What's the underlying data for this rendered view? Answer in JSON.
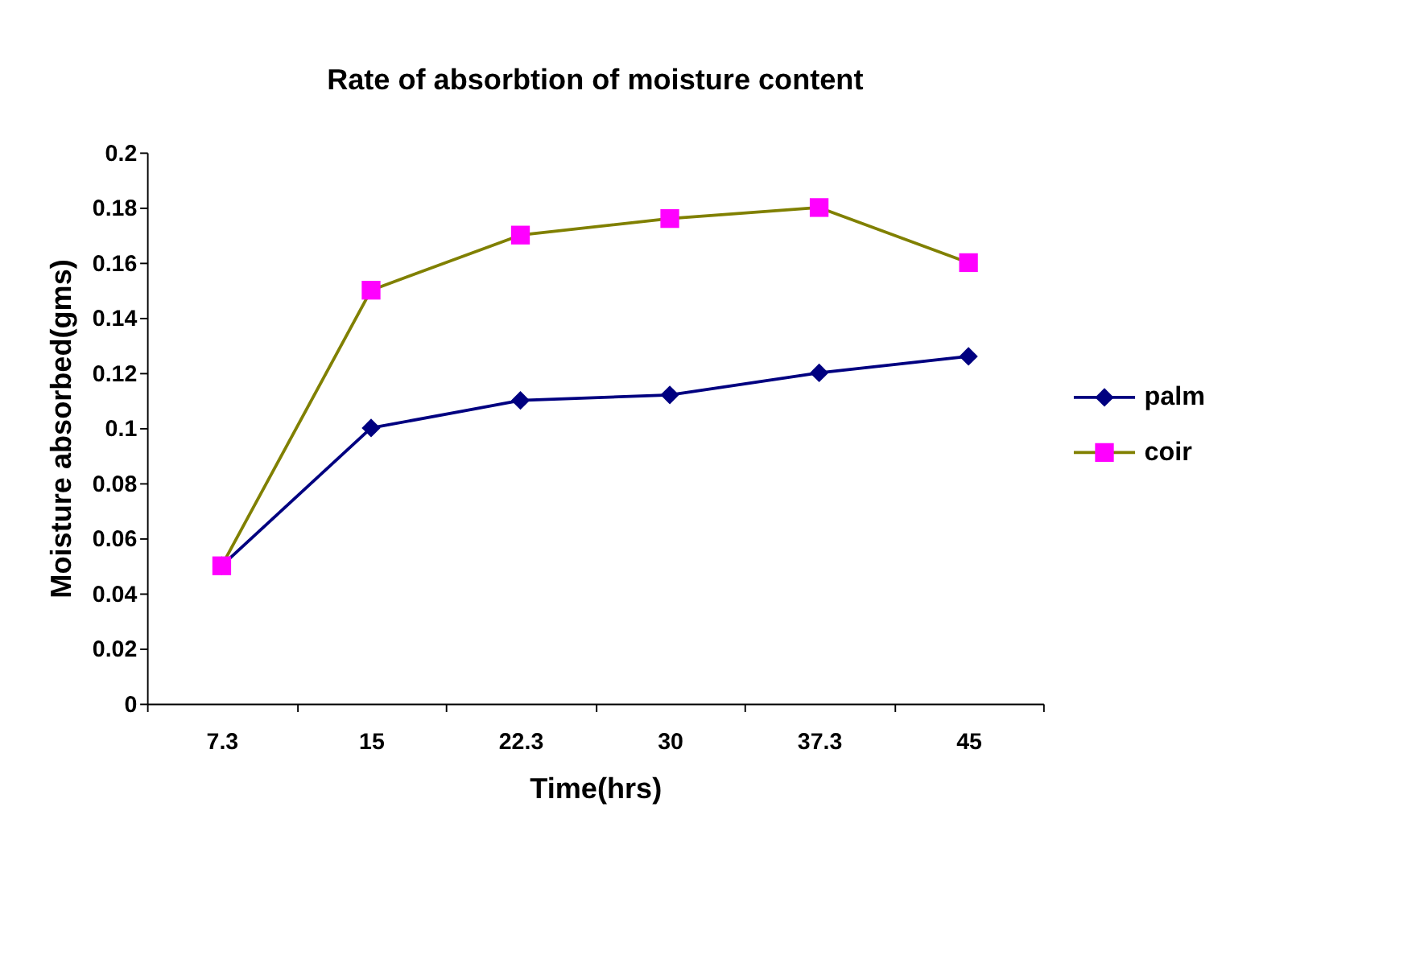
{
  "chart_data": {
    "type": "line",
    "title": "Rate of absorbtion of moisture content",
    "xlabel": "Time(hrs)",
    "ylabel": "Moisture absorbed(gms)",
    "categories": [
      "7.3",
      "15",
      "22.3",
      "30",
      "37.3",
      "45"
    ],
    "series": [
      {
        "name": "palm",
        "color": "#000080",
        "marker": "diamond",
        "values": [
          0.05,
          0.1,
          0.11,
          0.112,
          0.12,
          0.126
        ]
      },
      {
        "name": "coir",
        "color": "#808000",
        "marker": "square",
        "colors": [
          "#ff00ff",
          "#ff00ff",
          "#ff00ff",
          "#ff00ff",
          "#ff00ff",
          "#ff00ff"
        ],
        "values": [
          0.05,
          0.15,
          0.17,
          0.176,
          0.18,
          0.16
        ]
      }
    ],
    "ylim": [
      0,
      0.2
    ],
    "yticks": [
      0,
      0.02,
      0.04,
      0.06,
      0.08,
      0.1,
      0.12,
      0.14,
      0.16,
      0.18,
      0.2
    ],
    "grid": false,
    "legend": "right",
    "line_style": "solid"
  }
}
